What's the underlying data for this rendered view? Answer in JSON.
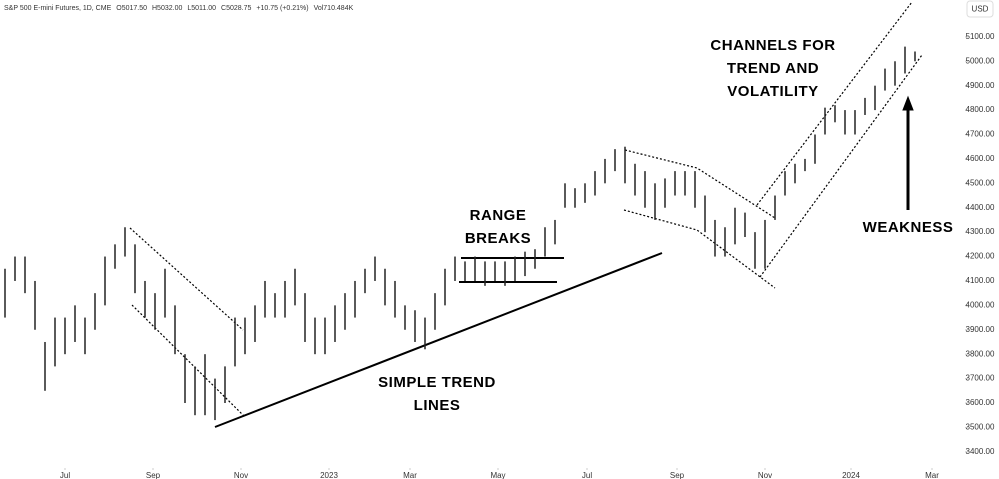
{
  "chart_data": {
    "type": "ohlc",
    "color": "#222222",
    "header": {
      "symbol": "S&P 500 E-mini Futures, 1D, CME",
      "ohlc": [
        "O5017.50",
        "H5032.00",
        "L5011.00",
        "C5028.75"
      ],
      "change": "+10.75 (+0.21%)",
      "volume": "Vol710.484K"
    },
    "currency": "USD",
    "annotations": [
      [
        "CHANNELS FOR",
        "TREND AND",
        "VOLATILITY"
      ],
      [
        "RANGE",
        "BREAKS"
      ],
      [
        "SIMPLE TREND",
        "LINES"
      ],
      [
        "WEAKNESS"
      ]
    ],
    "high": [
      4150,
      4200,
      4200,
      4100,
      3850,
      3950,
      3950,
      4000,
      3950,
      4050,
      4200,
      4250,
      4320,
      4250,
      4100,
      4050,
      4150,
      4000,
      3800,
      3750,
      3800,
      3700,
      3750,
      3950,
      3950,
      4000,
      4100,
      4050,
      4100,
      4150,
      4050,
      3950,
      3950,
      4000,
      4050,
      4100,
      4150,
      4200,
      4150,
      4100,
      4000,
      3980,
      3950,
      4050,
      4150,
      4200,
      4180,
      4200,
      4180,
      4180,
      4180,
      4200,
      4220,
      4230,
      4320,
      4350,
      4500,
      4480,
      4500,
      4550,
      4600,
      4640,
      4650,
      4580,
      4550,
      4500,
      4520,
      4550,
      4550,
      4550,
      4450,
      4350,
      4320,
      4400,
      4380,
      4300,
      4350,
      4450,
      4550,
      4580,
      4600,
      4700,
      4810,
      4820,
      4800,
      4800,
      4850,
      4900,
      4970,
      5000,
      5060,
      5040
    ],
    "low": [
      3950,
      4100,
      4050,
      3900,
      3650,
      3750,
      3800,
      3850,
      3800,
      3900,
      4000,
      4150,
      4200,
      4050,
      3950,
      3900,
      3950,
      3800,
      3600,
      3550,
      3550,
      3530,
      3600,
      3750,
      3800,
      3850,
      3950,
      3950,
      3950,
      4000,
      3850,
      3800,
      3800,
      3850,
      3900,
      3950,
      4050,
      4100,
      4000,
      3950,
      3900,
      3850,
      3820,
      3900,
      4000,
      4100,
      4100,
      4100,
      4080,
      4100,
      4080,
      4100,
      4120,
      4150,
      4200,
      4250,
      4400,
      4400,
      4420,
      4450,
      4500,
      4550,
      4500,
      4450,
      4400,
      4350,
      4400,
      4450,
      4450,
      4400,
      4300,
      4200,
      4200,
      4250,
      4280,
      4150,
      4150,
      4350,
      4450,
      4500,
      4550,
      4580,
      4700,
      4750,
      4700,
      4700,
      4780,
      4800,
      4880,
      4900,
      4950,
      5000
    ],
    "xticks": [
      {
        "value": 6,
        "label": "Jul"
      },
      {
        "value": 14.8,
        "label": "Sep"
      },
      {
        "value": 23.6,
        "label": "Nov"
      },
      {
        "value": 32.4,
        "label": "2023"
      },
      {
        "value": 40.5,
        "label": "Mar"
      },
      {
        "value": 49.3,
        "label": "May"
      },
      {
        "value": 58.2,
        "label": "Jul"
      },
      {
        "value": 67.2,
        "label": "Sep"
      },
      {
        "value": 76,
        "label": "Nov"
      },
      {
        "value": 84.6,
        "label": "2024"
      },
      {
        "value": 92.7,
        "label": "Mar"
      }
    ],
    "ylim": [
      3346,
      5251
    ],
    "yticks": [
      {
        "value": 3400,
        "label": "3400.00"
      },
      {
        "value": 3500,
        "label": "3500.00"
      },
      {
        "value": 3600,
        "label": "3600.00"
      },
      {
        "value": 3700,
        "label": "3700.00"
      },
      {
        "value": 3800,
        "label": "3800.00"
      },
      {
        "value": 3900,
        "label": "3900.00"
      },
      {
        "value": 4000,
        "label": "4000.00"
      },
      {
        "value": 4100,
        "label": "4100.00"
      },
      {
        "value": 4200,
        "label": "4200.00"
      },
      {
        "value": 4300,
        "label": "4300.00"
      },
      {
        "value": 4400,
        "label": "4400.00"
      },
      {
        "value": 4500,
        "label": "4500.00"
      },
      {
        "value": 4600,
        "label": "4600.00"
      },
      {
        "value": 4700,
        "label": "4700.00"
      },
      {
        "value": 4800,
        "label": "4800.00"
      },
      {
        "value": 4900,
        "label": "4900.00"
      },
      {
        "value": 5000,
        "label": "5000.00"
      },
      {
        "value": 5100,
        "label": "5100.00"
      }
    ]
  }
}
